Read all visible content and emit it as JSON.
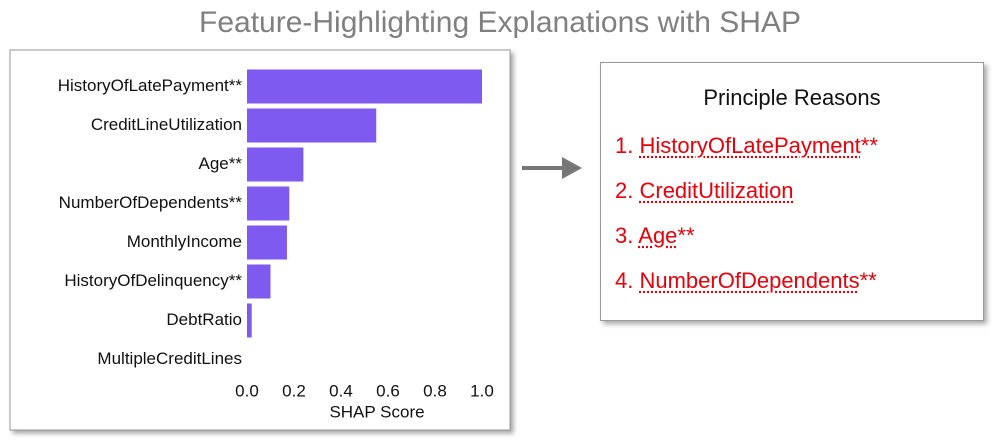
{
  "chart_data": {
    "type": "hbar",
    "title": "Feature-Highlighting Explanations with SHAP",
    "xlabel": "SHAP Score",
    "categories": [
      "HistoryOfLatePayment**",
      "CreditLineUtilization",
      "Age**",
      "NumberOfDependents**",
      "MonthlyIncome",
      "HistoryOfDelinquency**",
      "DebtRatio",
      "MultipleCreditLines"
    ],
    "values": [
      1.0,
      0.55,
      0.24,
      0.18,
      0.17,
      0.1,
      0.02,
      0
    ],
    "color": "#7f5af0",
    "xlim": [
      0,
      1.0
    ],
    "xticks": [
      {
        "value": 0,
        "label": "0.0"
      },
      0.2,
      0.4,
      0.6,
      0.8,
      {
        "value": 1,
        "label": "1.0"
      }
    ]
  },
  "reasons": {
    "title": "Principle Reasons",
    "items": [
      {
        "number": "1.",
        "name": "HistoryOfLatePayment",
        "suffix": "**"
      },
      {
        "number": "2.",
        "name": "CreditUtilization"
      },
      {
        "number": "3.",
        "name": "Age",
        "suffix": "**"
      },
      {
        "number": "4.",
        "name": "NumberOfDependents",
        "suffix": "**"
      }
    ]
  }
}
